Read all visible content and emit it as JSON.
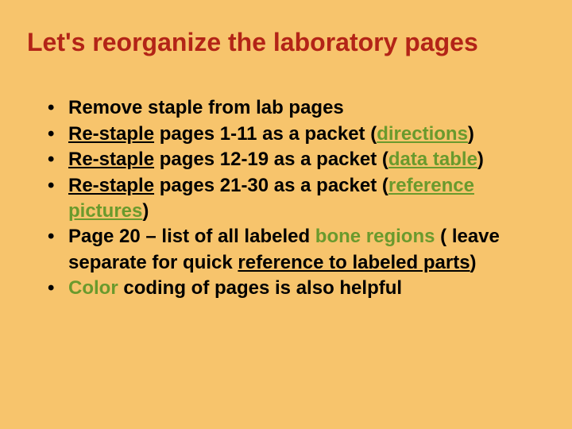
{
  "slide": {
    "background_color": "#f7c46c",
    "title": {
      "text": "Let's reorganize the laboratory pages",
      "color": "#b32417",
      "fontsize": 32
    },
    "body_fontsize": 24,
    "bullet_color": "#000000",
    "text_color": "#000000",
    "highlight_color": "#6a9a2d",
    "bullets": [
      {
        "pre": "Remove staple from lab pages",
        "u": "",
        "post": ""
      },
      {
        "pre": "",
        "u": "Re-staple",
        "post": " pages 1-11 as a packet (",
        "u2": "directions",
        "post2": ")",
        "u2_green": true
      },
      {
        "pre": "",
        "u": "Re-staple",
        "post": " pages 12-19 as a packet (",
        "u2": "data table",
        "post2": ")",
        "u2_green": true
      },
      {
        "pre": "",
        "u": "Re-staple",
        "post": " pages 21-30 as a packet (",
        "u2": "reference pictures",
        "post2": ")",
        "u2_green": true
      },
      {
        "pre": "Page 20 – list of all labeled ",
        "green": "bone regions",
        "post": " ( leave separate for quick ",
        "u": "reference to labeled parts",
        "post2": ")"
      },
      {
        "green": "Color",
        "post": " coding of pages is also helpful"
      }
    ]
  }
}
